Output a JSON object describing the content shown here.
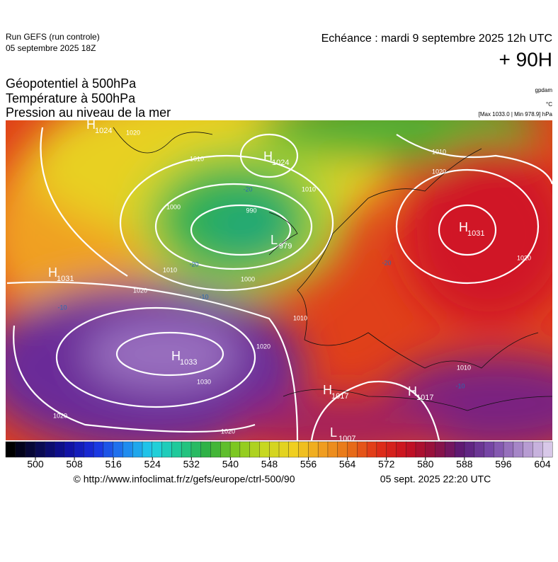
{
  "header": {
    "run": "Run GEFS (run controle)",
    "run_date": "05 septembre 2025 18Z",
    "valid": "Echéance : mardi 9 septembre 2025 12h UTC",
    "lead": "+ 90H"
  },
  "titles": [
    "Géopotentiel à 500hPa",
    "Température à 500hPa",
    "Pression au niveau de la mer"
  ],
  "units": [
    "gpdam",
    "°C",
    "[Max 1033.0 | Min 978.9] hPa"
  ],
  "centers": [
    {
      "symbol": "H",
      "value": 1024
    },
    {
      "symbol": "H",
      "value": 1024
    },
    {
      "symbol": "L",
      "value": 979
    },
    {
      "symbol": "H",
      "value": 1031
    },
    {
      "symbol": "H",
      "value": 1031
    },
    {
      "symbol": "H",
      "value": 1033
    },
    {
      "symbol": "H",
      "value": 1017
    },
    {
      "symbol": "H",
      "value": 1017
    },
    {
      "symbol": "L",
      "value": 1007
    }
  ],
  "isobar_labels": [
    1020,
    1010,
    1000,
    990,
    1010,
    1020,
    1010,
    1020,
    1000,
    1010,
    1020,
    1030,
    1020,
    1020,
    1010,
    1020,
    1010
  ],
  "temperature_labels": [
    -20,
    -20,
    -20,
    -10,
    -10,
    -10
  ],
  "colorbar": {
    "ticks": [
      500,
      508,
      516,
      524,
      532,
      540,
      548,
      556,
      564,
      572,
      580,
      588,
      596,
      604
    ]
  },
  "footer": {
    "source": "© http://www.infoclimat.fr/z/gefs/europe/ctrl-500/90",
    "generated": "05 sept. 2025 22:20 UTC"
  }
}
